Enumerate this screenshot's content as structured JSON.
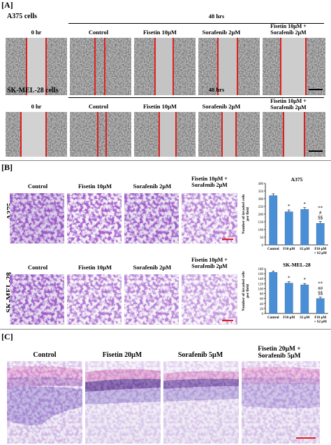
{
  "panel_a": {
    "label": "[A]",
    "row1_cell": "A375 cells",
    "row2_cell": "SK-MEL-28 cells",
    "time_header": "48 hrs",
    "col0": "0 hr",
    "cols": [
      "Control",
      "Fisetin 10μM",
      "Sorafenib 2μM"
    ],
    "combo_line1": "Fisetin 10μM +",
    "combo_line2": "Sorafenib 2μM"
  },
  "panel_b": {
    "label": "[B]",
    "cols": [
      "Control",
      "Fisetin 10μM",
      "Sorafenib 2μM"
    ],
    "combo_line1": "Fisetin 10μM +",
    "combo_line2": "Sorafenib 2μM",
    "row1_cell": "A375",
    "row2_cell": "SK-MEL-28"
  },
  "panel_c": {
    "label": "[C]",
    "cols": [
      "Control",
      "Fisetin 20μM",
      "Sorafenib 5μM"
    ],
    "combo_line1": "Fisetin 20μM +",
    "combo_line2": "Sorafenib 5μM"
  },
  "chart_data": [
    {
      "type": "bar",
      "title": "A375",
      "ylabel": "Number of invaded cells per field",
      "categories": [
        "Control",
        "F10 μM",
        "S2 μM",
        "F10 μM + S2 μM"
      ],
      "values": [
        320,
        215,
        230,
        140
      ],
      "ylim": [
        0,
        400
      ],
      "yticks": [
        0,
        50,
        100,
        150,
        200,
        250,
        300,
        350,
        400
      ],
      "annotations": [
        "",
        "*",
        "*",
        "**\n#\n$$"
      ]
    },
    {
      "type": "bar",
      "title": "SK-MEL-28",
      "ylabel": "Number of invaded cells per field",
      "categories": [
        "Control",
        "F10 μM",
        "S2 μM",
        "F10 μM + S2 μM"
      ],
      "values": [
        165,
        122,
        115,
        60
      ],
      "ylim": [
        0,
        180
      ],
      "yticks": [
        0,
        20,
        40,
        60,
        80,
        100,
        120,
        140,
        160,
        180
      ],
      "annotations": [
        "",
        "*",
        "*",
        "**\n##\n$$"
      ]
    }
  ],
  "colors": {
    "bar": "#4a8fd6",
    "scratch_line": "#e02020",
    "crystal_violet": "#6a3aa8",
    "he_pink": "#e8b4d8",
    "he_blue": "#9a8ccf"
  }
}
